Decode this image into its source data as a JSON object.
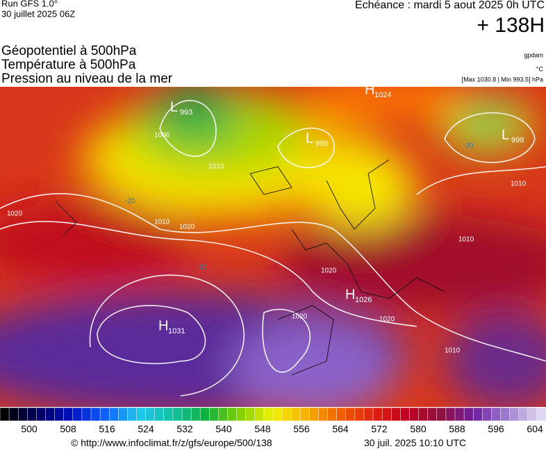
{
  "header": {
    "run": "Run GFS 1.0°",
    "run_date": "30 juillet 2025 06Z",
    "valid": "Echéance : mardi 5 aout 2025 0h UTC",
    "lead": "+ 138H",
    "titles": [
      "Géopotentiel à 500hPa",
      "Température à 500hPa",
      "Pression au niveau de la mer"
    ],
    "units": [
      "gpdam",
      "°C",
      "[Max 1030.8 | Min 993.5] hPa"
    ]
  },
  "map": {
    "centers": [
      {
        "letter": "L",
        "value": "993"
      },
      {
        "letter": "L",
        "value": "996"
      },
      {
        "letter": "L",
        "value": "998"
      },
      {
        "letter": "H",
        "value": "1024"
      },
      {
        "letter": "H",
        "value": "1031"
      },
      {
        "letter": "H",
        "value": "1026"
      }
    ],
    "contour_labels": [
      "1010",
      "1020",
      "1010",
      "1020",
      "1020",
      "1020",
      "1010",
      "1010",
      "1010",
      "1006",
      "-20",
      "-20",
      "-10",
      "1020"
    ]
  },
  "scale": {
    "ticks": [
      500,
      508,
      516,
      524,
      532,
      540,
      548,
      556,
      564,
      572,
      580,
      588,
      596,
      604
    ]
  },
  "footer": {
    "url": "© http://www.infoclimat.fr/z/gfs/europe/500/138",
    "generated": "30 juil. 2025 10:10 UTC"
  }
}
